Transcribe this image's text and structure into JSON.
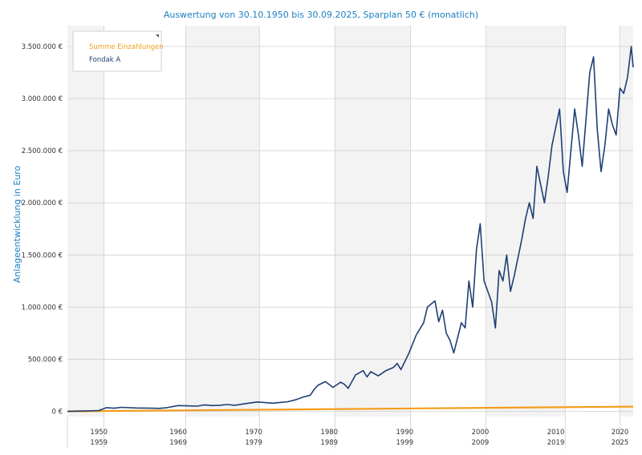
{
  "colors": {
    "fondak": "#1f3f73",
    "einzahlungen": "#f59c1a",
    "title": "#1a7fc1",
    "band": "#f3f3f3",
    "grid": "#cfcfcf"
  },
  "chart_data": {
    "type": "line",
    "title": "Auswertung von 30.10.1950 bis 30.09.2025, Sparplan 50 € (monatlich)",
    "xlabel": "",
    "ylabel": "Anlageentwicklung  in Euro",
    "xlim": [
      1950.83,
      2025.75
    ],
    "ylim": [
      -50000,
      3700000
    ],
    "yticks": [
      0,
      500000,
      1000000,
      1500000,
      2000000,
      2500000,
      3000000,
      3500000
    ],
    "ytick_labels": [
      "0 €",
      "500.000 €",
      "1.000.000 €",
      "1.500.000 €",
      "2.000.000 €",
      "2.500.000 €",
      "3.000.000 €",
      "3.500.000 €"
    ],
    "xticks": [
      {
        "x": 1955,
        "top": "1950",
        "bottom": "1959"
      },
      {
        "x": 1965.5,
        "top": "1960",
        "bottom": "1969"
      },
      {
        "x": 1975.5,
        "top": "1970",
        "bottom": "1979"
      },
      {
        "x": 1985.5,
        "top": "1980",
        "bottom": "1989"
      },
      {
        "x": 1995.5,
        "top": "1990",
        "bottom": "1999"
      },
      {
        "x": 2005.5,
        "top": "2000",
        "bottom": "2009"
      },
      {
        "x": 2015.5,
        "top": "2010",
        "bottom": "2019"
      },
      {
        "x": 2024,
        "top": "2020",
        "bottom": "2025"
      }
    ],
    "separators": [
      1955.67,
      1966.5,
      1976.25,
      1986.25,
      1996.25,
      2006.25,
      2016.75,
      2024.0
    ],
    "bands": [
      [
        1950.83,
        1955.67
      ],
      [
        1966.5,
        1976.25
      ],
      [
        1986.25,
        1996.25
      ],
      [
        2006.25,
        2016.75
      ],
      [
        2024.0,
        2025.75
      ]
    ],
    "legend": {
      "position": "top-left",
      "entries": [
        "Summe Einzahlungen",
        "Fondak A"
      ]
    },
    "grid": true,
    "series": [
      {
        "name": "Summe Einzahlungen",
        "color": "#f59c1a",
        "x": [
          1950.83,
          2025.75
        ],
        "y": [
          0,
          45000
        ]
      },
      {
        "name": "Fondak A",
        "color": "#1f3f73",
        "x": [
          1950.83,
          1953,
          1955,
          1955.5,
          1956,
          1957,
          1958,
          1960,
          1962,
          1963,
          1964,
          1965.5,
          1967,
          1968,
          1969,
          1970,
          1971,
          1972,
          1973,
          1975,
          1976,
          1978,
          1979,
          1980,
          1981,
          1982,
          1983,
          1983.5,
          1984,
          1985,
          1986,
          1987,
          1987.5,
          1988,
          1989,
          1990,
          1990.5,
          1991,
          1992,
          1993,
          1994,
          1994.5,
          1995,
          1996,
          1997,
          1998,
          1998.5,
          1999,
          1999.5,
          2000,
          2000.5,
          2001,
          2001.5,
          2002,
          2003,
          2003.5,
          2004,
          2004.5,
          2005,
          2005.5,
          2006,
          2007,
          2007.5,
          2008,
          2008.5,
          2009,
          2009.5,
          2010,
          2011,
          2011.5,
          2012,
          2012.5,
          2013,
          2014,
          2014.5,
          2015,
          2016,
          2016.5,
          2017,
          2017.5,
          2018,
          2018.5,
          2019,
          2019.5,
          2020,
          2020.5,
          2021,
          2021.5,
          2022,
          2022.5,
          2023,
          2023.5,
          2024,
          2024.5,
          2025,
          2025.5,
          2025.75
        ],
        "y": [
          0,
          3000,
          8000,
          22000,
          35000,
          30000,
          38000,
          32000,
          30000,
          28000,
          35000,
          55000,
          52000,
          50000,
          62000,
          55000,
          58000,
          65000,
          58000,
          80000,
          90000,
          78000,
          85000,
          92000,
          110000,
          135000,
          155000,
          210000,
          250000,
          285000,
          230000,
          280000,
          260000,
          220000,
          350000,
          390000,
          330000,
          380000,
          340000,
          390000,
          420000,
          460000,
          400000,
          550000,
          730000,
          850000,
          1000000,
          1030000,
          1060000,
          860000,
          970000,
          750000,
          680000,
          560000,
          850000,
          800000,
          1250000,
          1000000,
          1550000,
          1800000,
          1250000,
          1050000,
          800000,
          1350000,
          1250000,
          1500000,
          1150000,
          1300000,
          1650000,
          1850000,
          2000000,
          1850000,
          2350000,
          2000000,
          2250000,
          2550000,
          2900000,
          2300000,
          2100000,
          2500000,
          2900000,
          2650000,
          2350000,
          2800000,
          3250000,
          3400000,
          2700000,
          2300000,
          2550000,
          2900000,
          2750000,
          2650000,
          3100000,
          3050000,
          3200000,
          3500000,
          3300000
        ]
      }
    ]
  }
}
